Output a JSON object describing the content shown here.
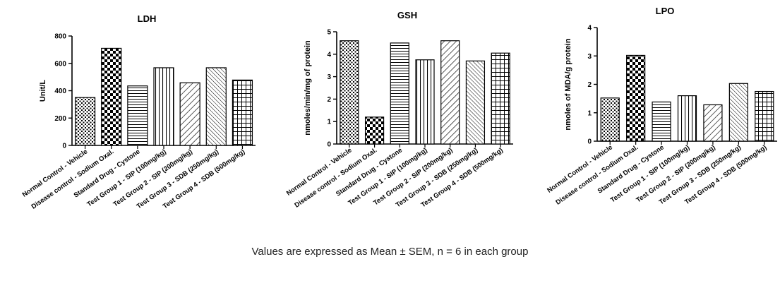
{
  "caption": "Values are expressed as Mean ± SEM, n = 6 in each group",
  "chart_data": [
    {
      "type": "bar",
      "title": "LDH",
      "ylabel": "Unit/L",
      "xlabel": "",
      "ylim": [
        0,
        800
      ],
      "yticks": [
        0,
        200,
        400,
        600,
        800
      ],
      "categories": [
        "Normal Control - Vehicle",
        "Disease control - Sodium Oxal.",
        "Standard Drug - Cystone",
        "Test Group 1 - SIP (100mg/kg)",
        "Test Group 2 - SIP (200mg/kg)",
        "Test Group 3 - SDB (250mg/kg)",
        "Test Group 4 - SDB (500mg/kg)"
      ],
      "values": [
        350,
        710,
        435,
        568,
        458,
        568,
        478
      ],
      "grid": false,
      "legend": "none"
    },
    {
      "type": "bar",
      "title": "GSH",
      "ylabel": "nmoles/min/mg of protein",
      "xlabel": "",
      "ylim": [
        0,
        5
      ],
      "yticks": [
        0,
        1,
        2,
        3,
        4,
        5
      ],
      "categories": [
        "Normal Control - Vehicle",
        "Disease control - Sodium Oxal.",
        "Standard Drug - Cystone",
        "Test Group 1 - SIP (100mg/kg)",
        "Test Group 2 - SIP (200mg/kg)",
        "Test Group 3 - SDB (250mg/kg)",
        "Test Group 4 - SDB (500mg/kg)"
      ],
      "values": [
        4.6,
        1.2,
        4.5,
        3.75,
        4.6,
        3.7,
        4.05
      ],
      "grid": false,
      "legend": "none"
    },
    {
      "type": "bar",
      "title": "LPO",
      "ylabel": "nmoles of MDA/g protein",
      "xlabel": "",
      "ylim": [
        0,
        4
      ],
      "yticks": [
        0,
        1,
        2,
        3,
        4
      ],
      "categories": [
        "Normal Control - Vehicle",
        "Disease control - Sodium Oxal.",
        "Standard Drug - Cystone",
        "Test Group 1 - SIP (100mg/kg)",
        "Test Group 2 - SIP (200mg/kg)",
        "Test Group 3 - SDB (250mg/kg)",
        "Test Group 4 - SDB (500mg/kg)"
      ],
      "values": [
        1.52,
        3.02,
        1.38,
        1.6,
        1.28,
        2.03,
        1.75
      ],
      "grid": false,
      "legend": "none"
    }
  ]
}
